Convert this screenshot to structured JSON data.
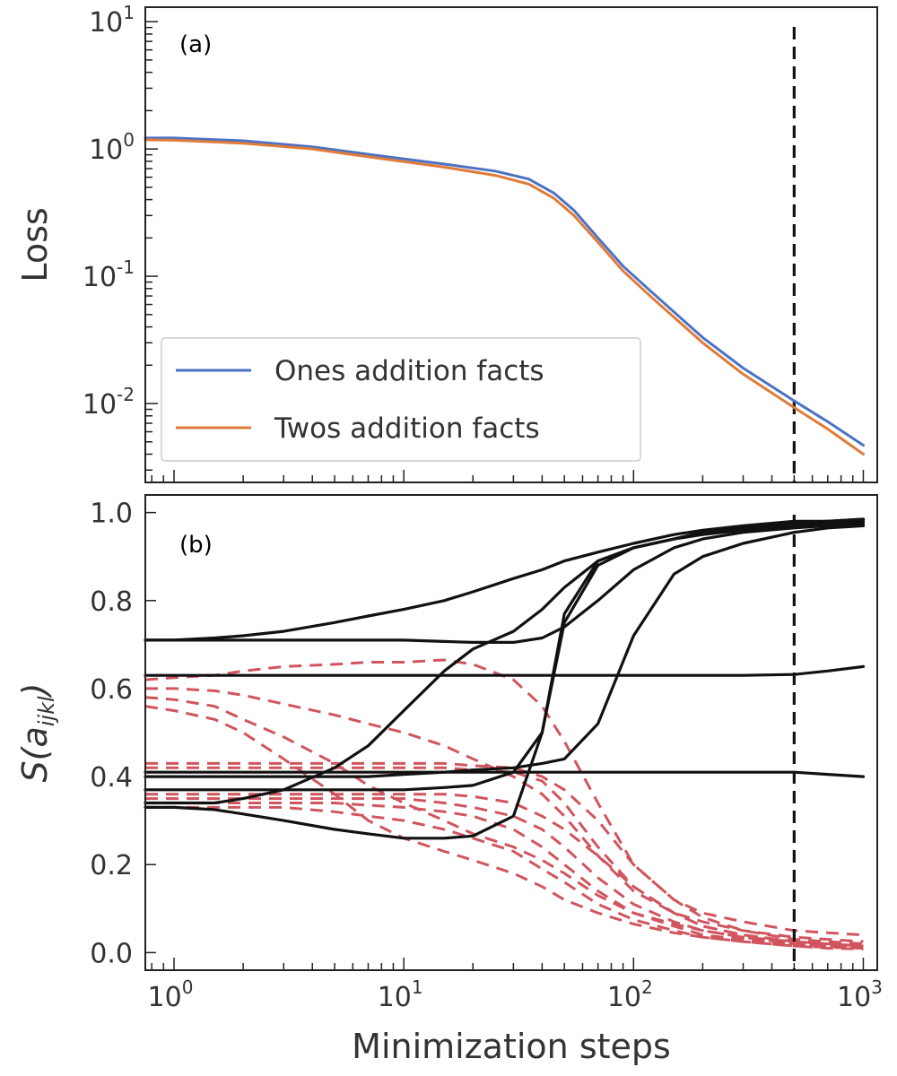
{
  "chart_data": [
    {
      "type": "line",
      "panel_label": "(a)",
      "xscale": "log",
      "yscale": "log",
      "xlim": [
        0.75,
        1150
      ],
      "ylim": [
        0.0024,
        13
      ],
      "xlabel": "",
      "ylabel": "Loss",
      "y_ticks": [
        {
          "value": 10,
          "base": "10",
          "exp": "1"
        },
        {
          "value": 1,
          "base": "10",
          "exp": "0"
        },
        {
          "value": 0.1,
          "base": "10",
          "exp": "-1"
        },
        {
          "value": 0.01,
          "base": "10",
          "exp": "-2"
        }
      ],
      "legend": {
        "placement": "lower-left"
      },
      "vline": {
        "x": 500,
        "style": "dashed",
        "color": "#111111"
      },
      "series": [
        {
          "name": "Ones addition facts",
          "color": "#4c72c4",
          "x": [
            0.75,
            1,
            2,
            4,
            8,
            15,
            25,
            35,
            45,
            55,
            70,
            90,
            120,
            200,
            300,
            500,
            700,
            1000
          ],
          "y": [
            1.22,
            1.22,
            1.16,
            1.04,
            0.88,
            0.76,
            0.67,
            0.58,
            0.45,
            0.33,
            0.2,
            0.12,
            0.075,
            0.033,
            0.019,
            0.0105,
            0.0072,
            0.0047
          ]
        },
        {
          "name": "Twos addition facts",
          "color": "#e07b39",
          "x": [
            0.75,
            1,
            2,
            4,
            8,
            15,
            25,
            35,
            45,
            55,
            70,
            90,
            120,
            200,
            300,
            500,
            700,
            1000
          ],
          "y": [
            1.18,
            1.17,
            1.11,
            1.0,
            0.84,
            0.72,
            0.62,
            0.53,
            0.41,
            0.3,
            0.185,
            0.11,
            0.068,
            0.03,
            0.017,
            0.0093,
            0.0063,
            0.004
          ]
        }
      ]
    },
    {
      "type": "line",
      "panel_label": "(b)",
      "xscale": "log",
      "yscale": "linear",
      "xlim": [
        0.75,
        1150
      ],
      "ylim": [
        -0.04,
        1.04
      ],
      "xlabel": "Minimization steps",
      "ylabel": "S(a_ijkl)",
      "ylabel_parts": {
        "main": "S(a",
        "sub": "ijkl",
        "close": ")"
      },
      "x_ticks": [
        {
          "value": 1,
          "base": "10",
          "exp": "0"
        },
        {
          "value": 10,
          "base": "10",
          "exp": "1"
        },
        {
          "value": 100,
          "base": "10",
          "exp": "2"
        },
        {
          "value": 1000,
          "base": "10",
          "exp": "3"
        }
      ],
      "y_ticks": [
        {
          "value": 0,
          "label": "0.0"
        },
        {
          "value": 0.2,
          "label": "0.2"
        },
        {
          "value": 0.4,
          "label": "0.4"
        },
        {
          "value": 0.6,
          "label": "0.6"
        },
        {
          "value": 0.8,
          "label": "0.8"
        },
        {
          "value": 1.0,
          "label": "1.0"
        }
      ],
      "vline": {
        "x": 500,
        "style": "dashed",
        "color": "#111111"
      },
      "x": [
        0.75,
        1,
        1.5,
        2,
        3,
        5,
        7,
        10,
        15,
        20,
        30,
        40,
        50,
        70,
        100,
        150,
        200,
        300,
        500,
        700,
        1000
      ],
      "solid_color": "#111111",
      "dashed_color": "#d0555f",
      "solid": [
        {
          "y": [
            0.71,
            0.71,
            0.715,
            0.72,
            0.73,
            0.75,
            0.765,
            0.78,
            0.8,
            0.82,
            0.85,
            0.87,
            0.89,
            0.91,
            0.93,
            0.95,
            0.96,
            0.97,
            0.98,
            0.98,
            0.98
          ]
        },
        {
          "y": [
            0.71,
            0.71,
            0.71,
            0.71,
            0.71,
            0.71,
            0.71,
            0.71,
            0.707,
            0.705,
            0.705,
            0.715,
            0.74,
            0.8,
            0.87,
            0.92,
            0.94,
            0.955,
            0.965,
            0.97,
            0.975
          ]
        },
        {
          "y": [
            0.63,
            0.63,
            0.63,
            0.63,
            0.63,
            0.63,
            0.63,
            0.63,
            0.63,
            0.63,
            0.63,
            0.63,
            0.63,
            0.63,
            0.63,
            0.63,
            0.63,
            0.63,
            0.632,
            0.64,
            0.65
          ]
        },
        {
          "y": [
            0.41,
            0.41,
            0.41,
            0.41,
            0.41,
            0.41,
            0.41,
            0.41,
            0.41,
            0.41,
            0.41,
            0.41,
            0.41,
            0.41,
            0.41,
            0.41,
            0.41,
            0.41,
            0.41,
            0.405,
            0.4
          ]
        },
        {
          "y": [
            0.4,
            0.4,
            0.4,
            0.4,
            0.4,
            0.4,
            0.4,
            0.405,
            0.41,
            0.415,
            0.42,
            0.43,
            0.44,
            0.52,
            0.72,
            0.86,
            0.9,
            0.93,
            0.955,
            0.965,
            0.97
          ]
        },
        {
          "y": [
            0.37,
            0.37,
            0.37,
            0.37,
            0.37,
            0.37,
            0.37,
            0.37,
            0.375,
            0.38,
            0.41,
            0.5,
            0.75,
            0.88,
            0.92,
            0.94,
            0.95,
            0.96,
            0.97,
            0.975,
            0.98
          ]
        },
        {
          "y": [
            0.34,
            0.34,
            0.34,
            0.35,
            0.37,
            0.42,
            0.47,
            0.55,
            0.64,
            0.69,
            0.73,
            0.78,
            0.83,
            0.89,
            0.92,
            0.94,
            0.955,
            0.965,
            0.975,
            0.98,
            0.985
          ]
        },
        {
          "y": [
            0.33,
            0.33,
            0.325,
            0.315,
            0.3,
            0.28,
            0.27,
            0.26,
            0.26,
            0.265,
            0.31,
            0.5,
            0.77,
            0.89,
            0.92,
            0.94,
            0.955,
            0.965,
            0.975,
            0.98,
            0.985
          ]
        }
      ],
      "dashed": [
        {
          "y": [
            0.62,
            0.625,
            0.63,
            0.64,
            0.65,
            0.655,
            0.66,
            0.66,
            0.665,
            0.655,
            0.62,
            0.56,
            0.48,
            0.34,
            0.2,
            0.12,
            0.09,
            0.07,
            0.05,
            0.045,
            0.04
          ]
        },
        {
          "y": [
            0.6,
            0.6,
            0.595,
            0.585,
            0.565,
            0.54,
            0.52,
            0.5,
            0.47,
            0.44,
            0.4,
            0.36,
            0.31,
            0.22,
            0.14,
            0.09,
            0.07,
            0.05,
            0.035,
            0.03,
            0.025
          ]
        },
        {
          "y": [
            0.58,
            0.575,
            0.56,
            0.53,
            0.49,
            0.43,
            0.38,
            0.34,
            0.3,
            0.27,
            0.24,
            0.21,
            0.18,
            0.13,
            0.09,
            0.065,
            0.05,
            0.035,
            0.025,
            0.02,
            0.015
          ]
        },
        {
          "y": [
            0.56,
            0.55,
            0.53,
            0.5,
            0.44,
            0.36,
            0.3,
            0.26,
            0.23,
            0.21,
            0.18,
            0.15,
            0.12,
            0.09,
            0.065,
            0.045,
            0.035,
            0.025,
            0.015,
            0.012,
            0.01
          ]
        },
        {
          "y": [
            0.43,
            0.43,
            0.43,
            0.43,
            0.43,
            0.43,
            0.43,
            0.43,
            0.43,
            0.425,
            0.42,
            0.4,
            0.37,
            0.3,
            0.2,
            0.12,
            0.08,
            0.05,
            0.03,
            0.025,
            0.02
          ]
        },
        {
          "y": [
            0.42,
            0.42,
            0.42,
            0.42,
            0.42,
            0.42,
            0.42,
            0.42,
            0.42,
            0.415,
            0.41,
            0.39,
            0.34,
            0.24,
            0.15,
            0.09,
            0.06,
            0.04,
            0.025,
            0.02,
            0.015
          ]
        },
        {
          "y": [
            0.36,
            0.36,
            0.36,
            0.36,
            0.36,
            0.36,
            0.36,
            0.36,
            0.36,
            0.355,
            0.34,
            0.31,
            0.28,
            0.22,
            0.15,
            0.09,
            0.06,
            0.04,
            0.025,
            0.02,
            0.015
          ]
        },
        {
          "y": [
            0.35,
            0.35,
            0.35,
            0.35,
            0.35,
            0.35,
            0.35,
            0.35,
            0.34,
            0.33,
            0.31,
            0.28,
            0.24,
            0.17,
            0.11,
            0.07,
            0.05,
            0.035,
            0.02,
            0.015,
            0.01
          ]
        },
        {
          "y": [
            0.34,
            0.34,
            0.34,
            0.34,
            0.34,
            0.34,
            0.335,
            0.33,
            0.32,
            0.31,
            0.28,
            0.24,
            0.2,
            0.14,
            0.09,
            0.06,
            0.04,
            0.03,
            0.02,
            0.015,
            0.01
          ]
        },
        {
          "y": [
            0.33,
            0.33,
            0.33,
            0.33,
            0.33,
            0.32,
            0.31,
            0.3,
            0.28,
            0.26,
            0.23,
            0.19,
            0.16,
            0.11,
            0.075,
            0.05,
            0.035,
            0.025,
            0.015,
            0.01,
            0.008
          ]
        }
      ]
    }
  ]
}
